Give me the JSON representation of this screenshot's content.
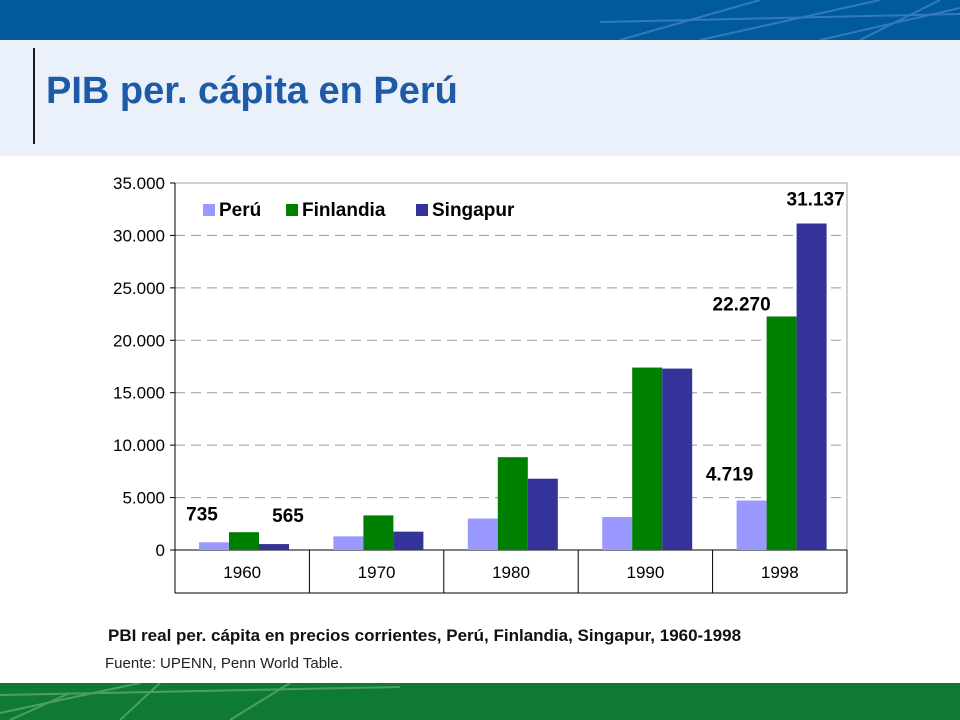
{
  "header": {
    "title": "PIB per. cápita en Perú"
  },
  "colors": {
    "top_band": "#005a9c",
    "title_band": "#eaf1fb",
    "title_text": "#1f5aa6",
    "bottom_band": "#0f7a33"
  },
  "chart_data": {
    "type": "bar",
    "title": "",
    "xlabel": "",
    "ylabel": "",
    "categories": [
      "1960",
      "1970",
      "1980",
      "1990",
      "1998"
    ],
    "series": [
      {
        "name": "Perú",
        "color": "#9999ff",
        "values": [
          735,
          1300,
          3000,
          3150,
          4719
        ]
      },
      {
        "name": "Finlandia",
        "color": "#008000",
        "values": [
          1700,
          3300,
          8850,
          17400,
          22270
        ]
      },
      {
        "name": "Singapur",
        "color": "#333399",
        "values": [
          565,
          1750,
          6800,
          17300,
          31137
        ]
      }
    ],
    "ylim": [
      0,
      35000
    ],
    "yticks": [
      0,
      5000,
      10000,
      15000,
      20000,
      25000,
      30000,
      35000
    ],
    "ytick_labels": [
      "0",
      "5.000",
      "10.000",
      "15.000",
      "20.000",
      "25.000",
      "30.000",
      "35.000"
    ],
    "grid": true,
    "legend_placement": "top-left",
    "data_labels": [
      {
        "series": 0,
        "category": 0,
        "text": "735"
      },
      {
        "series": 2,
        "category": 0,
        "text": "565"
      },
      {
        "series": 0,
        "category": 4,
        "text": "4.719"
      },
      {
        "series": 1,
        "category": 4,
        "text": "22.270"
      },
      {
        "series": 2,
        "category": 4,
        "text": "31.137"
      }
    ]
  },
  "caption": {
    "text": "PBI real per. cápita en precios corrientes, Perú, Finlandia, Singapur, 1960-1998",
    "source": "Fuente: UPENN, Penn World Table."
  }
}
